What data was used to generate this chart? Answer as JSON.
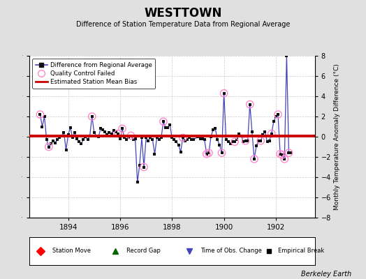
{
  "title": "WESTTOWN",
  "subtitle": "Difference of Station Temperature Data from Regional Average",
  "ylabel_right": "Monthly Temperature Anomaly Difference (°C)",
  "xlim": [
    1892.5,
    1903.5
  ],
  "ylim": [
    -8,
    8
  ],
  "yticks": [
    -8,
    -6,
    -4,
    -2,
    0,
    2,
    4,
    6,
    8
  ],
  "xticks": [
    1894,
    1896,
    1898,
    1900,
    1902
  ],
  "bias": 0.05,
  "background_color": "#e0e0e0",
  "plot_bg_color": "#ffffff",
  "watermark": "Berkeley Earth",
  "line_color": "#4444bb",
  "dot_color": "#111111",
  "bias_color": "#cc0000",
  "qc_color": "#ff88cc",
  "time_series": [
    [
      1892.917,
      2.2
    ],
    [
      1893.0,
      1.0
    ],
    [
      1893.083,
      2.0
    ],
    [
      1893.167,
      -0.3
    ],
    [
      1893.25,
      -1.0
    ],
    [
      1893.333,
      -0.7
    ],
    [
      1893.417,
      -0.4
    ],
    [
      1893.5,
      -0.6
    ],
    [
      1893.583,
      -0.3
    ],
    [
      1893.667,
      -0.1
    ],
    [
      1893.75,
      0.1
    ],
    [
      1893.833,
      0.4
    ],
    [
      1893.917,
      -1.3
    ],
    [
      1894.0,
      0.2
    ],
    [
      1894.083,
      0.9
    ],
    [
      1894.167,
      -0.1
    ],
    [
      1894.25,
      0.4
    ],
    [
      1894.333,
      -0.2
    ],
    [
      1894.417,
      -0.5
    ],
    [
      1894.5,
      -0.7
    ],
    [
      1894.583,
      -0.3
    ],
    [
      1894.667,
      0.0
    ],
    [
      1894.75,
      -0.3
    ],
    [
      1894.833,
      0.1
    ],
    [
      1894.917,
      2.0
    ],
    [
      1895.0,
      0.4
    ],
    [
      1895.083,
      0.1
    ],
    [
      1895.167,
      0.0
    ],
    [
      1895.25,
      0.8
    ],
    [
      1895.333,
      0.7
    ],
    [
      1895.417,
      0.5
    ],
    [
      1895.5,
      0.2
    ],
    [
      1895.583,
      0.4
    ],
    [
      1895.667,
      0.3
    ],
    [
      1895.75,
      0.6
    ],
    [
      1895.833,
      0.5
    ],
    [
      1895.917,
      0.3
    ],
    [
      1896.0,
      -0.2
    ],
    [
      1896.083,
      0.8
    ],
    [
      1896.167,
      -0.1
    ],
    [
      1896.25,
      -0.3
    ],
    [
      1896.333,
      -0.1
    ],
    [
      1896.417,
      0.1
    ],
    [
      1896.5,
      -0.3
    ],
    [
      1896.583,
      -0.2
    ],
    [
      1896.667,
      -4.5
    ],
    [
      1896.75,
      -2.8
    ],
    [
      1896.833,
      -0.1
    ],
    [
      1896.917,
      -3.0
    ],
    [
      1897.0,
      -0.1
    ],
    [
      1897.083,
      -0.4
    ],
    [
      1897.167,
      -0.1
    ],
    [
      1897.25,
      -0.3
    ],
    [
      1897.333,
      -1.7
    ],
    [
      1897.417,
      -0.1
    ],
    [
      1897.5,
      -0.3
    ],
    [
      1897.583,
      -0.1
    ],
    [
      1897.667,
      1.5
    ],
    [
      1897.75,
      0.9
    ],
    [
      1897.833,
      0.9
    ],
    [
      1897.917,
      1.2
    ],
    [
      1898.0,
      -0.1
    ],
    [
      1898.083,
      -0.3
    ],
    [
      1898.167,
      -0.5
    ],
    [
      1898.25,
      -0.8
    ],
    [
      1898.333,
      -1.5
    ],
    [
      1898.417,
      -0.1
    ],
    [
      1898.5,
      -0.4
    ],
    [
      1898.583,
      -0.3
    ],
    [
      1898.667,
      -0.1
    ],
    [
      1898.75,
      -0.3
    ],
    [
      1898.833,
      -0.3
    ],
    [
      1899.0,
      0.0
    ],
    [
      1899.083,
      -0.2
    ],
    [
      1899.167,
      -0.2
    ],
    [
      1899.25,
      -0.3
    ],
    [
      1899.333,
      -1.7
    ],
    [
      1899.417,
      -1.6
    ],
    [
      1899.5,
      0.0
    ],
    [
      1899.583,
      0.7
    ],
    [
      1899.667,
      0.8
    ],
    [
      1899.75,
      -0.3
    ],
    [
      1899.833,
      -0.8
    ],
    [
      1899.917,
      -1.6
    ],
    [
      1900.0,
      4.3
    ],
    [
      1900.083,
      -0.3
    ],
    [
      1900.167,
      -0.5
    ],
    [
      1900.25,
      -0.7
    ],
    [
      1900.333,
      -0.5
    ],
    [
      1900.417,
      -0.5
    ],
    [
      1900.5,
      -0.3
    ],
    [
      1900.583,
      0.3
    ],
    [
      1900.667,
      0.1
    ],
    [
      1900.75,
      -0.5
    ],
    [
      1900.833,
      -0.4
    ],
    [
      1900.917,
      -0.4
    ],
    [
      1901.0,
      3.2
    ],
    [
      1901.083,
      0.5
    ],
    [
      1901.167,
      -2.2
    ],
    [
      1901.25,
      -0.9
    ],
    [
      1901.333,
      -0.4
    ],
    [
      1901.417,
      -0.4
    ],
    [
      1901.5,
      0.2
    ],
    [
      1901.583,
      0.5
    ],
    [
      1901.667,
      -0.5
    ],
    [
      1901.75,
      -0.4
    ],
    [
      1901.833,
      0.3
    ],
    [
      1901.917,
      1.5
    ],
    [
      1902.0,
      2.0
    ],
    [
      1902.083,
      2.2
    ],
    [
      1902.167,
      -1.7
    ],
    [
      1902.25,
      -1.8
    ],
    [
      1902.333,
      -2.2
    ],
    [
      1902.417,
      8.0
    ],
    [
      1902.5,
      -1.6
    ],
    [
      1902.583,
      -1.6
    ]
  ],
  "qc_failed": [
    1892.917,
    1893.25,
    1894.917,
    1895.917,
    1896.083,
    1896.417,
    1896.917,
    1897.667,
    1898.417,
    1899.333,
    1899.417,
    1899.917,
    1900.0,
    1900.417,
    1900.833,
    1901.0,
    1901.167,
    1901.417,
    1901.833,
    1902.083,
    1902.167,
    1902.25,
    1902.333,
    1902.5
  ]
}
